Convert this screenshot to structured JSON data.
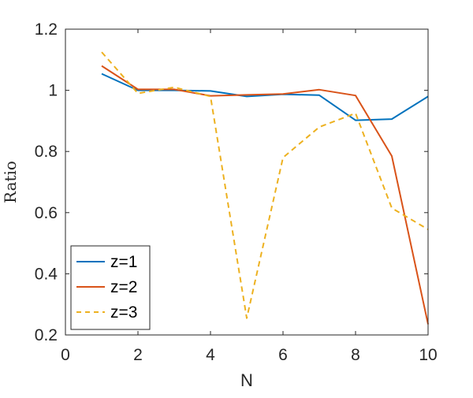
{
  "chart_data": {
    "type": "line",
    "xlabel": "N",
    "ylabel": "Ratio",
    "xlim": [
      0,
      10
    ],
    "ylim": [
      0.2,
      1.2
    ],
    "xticks": [
      0,
      2,
      4,
      6,
      8,
      10
    ],
    "yticks": [
      0.2,
      0.4,
      0.6,
      0.8,
      1,
      1.2
    ],
    "xtick_labels": [
      "0",
      "2",
      "4",
      "6",
      "8",
      "10"
    ],
    "ytick_labels": [
      "0.2",
      "0.4",
      "0.6",
      "0.8",
      "1",
      "1.2"
    ],
    "grid": false,
    "box": true,
    "legend_position": "bottom-left",
    "x": [
      1,
      2,
      3,
      4,
      5,
      6,
      7,
      8,
      9,
      10
    ],
    "series": [
      {
        "name": "z=1",
        "color": "#0072BD",
        "line_style": "solid",
        "values": [
          1.054,
          1.0,
          1.0,
          0.998,
          0.98,
          0.987,
          0.984,
          0.902,
          0.906,
          0.98
        ]
      },
      {
        "name": "z=2",
        "color": "#D95319",
        "line_style": "solid",
        "values": [
          1.08,
          1.003,
          1.003,
          0.982,
          0.985,
          0.988,
          1.002,
          0.983,
          0.785,
          0.235
        ]
      },
      {
        "name": "z=3",
        "color": "#EDB120",
        "line_style": "dashed",
        "values": [
          1.125,
          0.99,
          1.01,
          0.98,
          0.255,
          0.78,
          0.88,
          0.925,
          0.615,
          0.545
        ]
      }
    ]
  }
}
